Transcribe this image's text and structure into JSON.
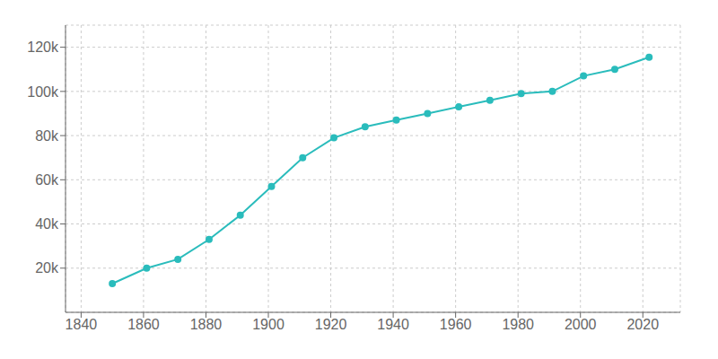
{
  "chart_data": {
    "type": "line",
    "x": [
      1850,
      1861,
      1871,
      1881,
      1891,
      1901,
      1911,
      1921,
      1931,
      1941,
      1951,
      1961,
      1971,
      1981,
      1991,
      2001,
      2011,
      2022
    ],
    "values": [
      13000,
      20000,
      24000,
      33000,
      44000,
      57000,
      70000,
      79000,
      84000,
      87000,
      90000,
      93000,
      96000,
      99000,
      100000,
      107000,
      110000,
      115500
    ],
    "color": "#2abcbc",
    "marker": "circle",
    "xlim": [
      1835,
      2032
    ],
    "ylim": [
      0,
      130000
    ],
    "xticks": [
      1840,
      1860,
      1880,
      1900,
      1920,
      1940,
      1960,
      1980,
      2000,
      2020
    ],
    "yticks": [
      {
        "value": 20000,
        "label": "20k"
      },
      {
        "value": 40000,
        "label": "40k"
      },
      {
        "value": 60000,
        "label": "60k"
      },
      {
        "value": 80000,
        "label": "80k"
      },
      {
        "value": 100000,
        "label": "100k"
      },
      {
        "value": 120000,
        "label": "120k"
      }
    ],
    "grid": true
  }
}
